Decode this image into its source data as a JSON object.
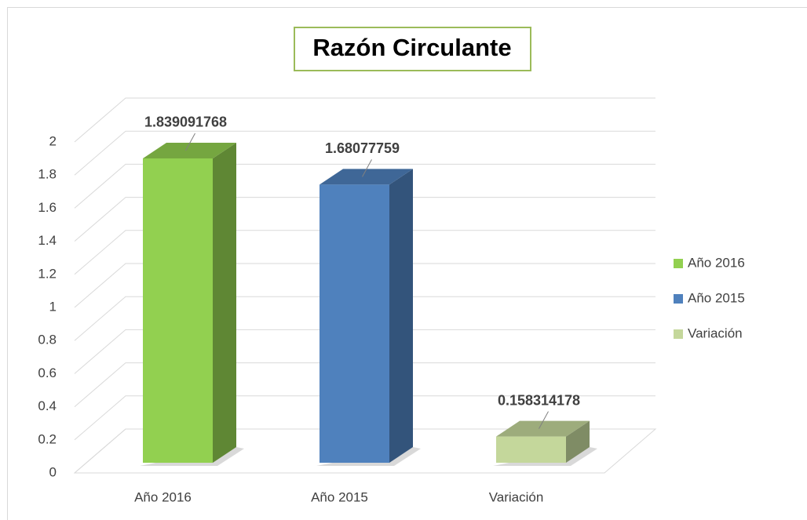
{
  "chart_data": {
    "type": "bar3d",
    "title": "Razón Circulante",
    "categories": [
      "Año 2016",
      "Año 2015",
      "Variación"
    ],
    "values": [
      1.839091768,
      1.68077759,
      0.158314178
    ],
    "colors": [
      "#92d050",
      "#4f81bd",
      "#c4d79b"
    ],
    "ylim": [
      0,
      2
    ],
    "yticks": [
      0,
      0.2,
      0.4,
      0.6,
      0.8,
      1,
      1.2,
      1.4,
      1.6,
      1.8,
      2
    ],
    "grid": true,
    "legend": "right"
  }
}
